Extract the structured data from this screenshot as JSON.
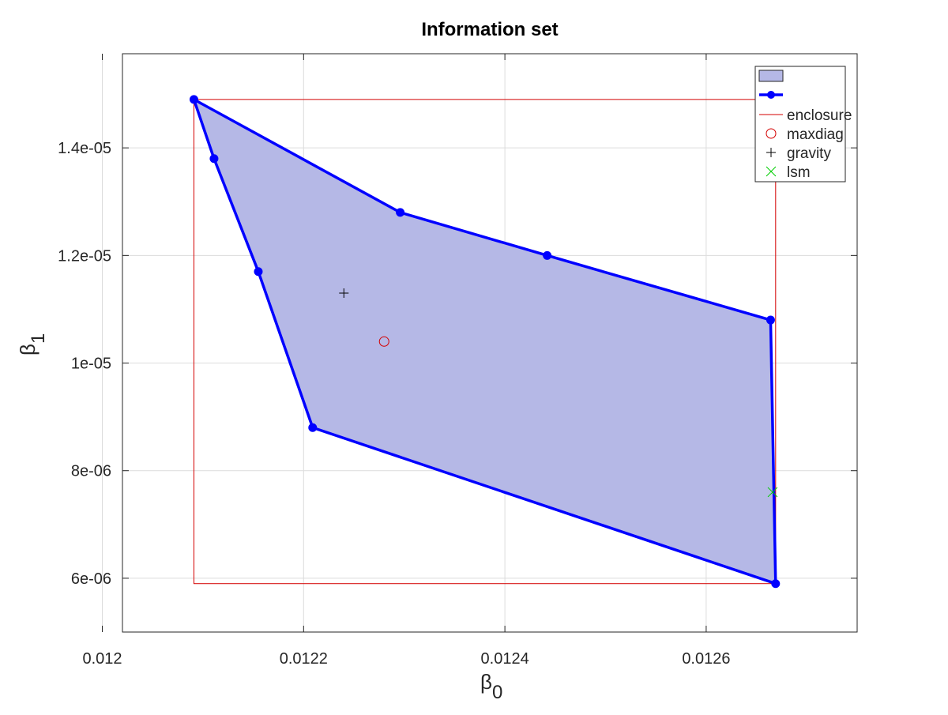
{
  "chart_data": {
    "type": "scatter",
    "title": "Information set",
    "xlabel": {
      "symbol": "β",
      "subscript": "0"
    },
    "ylabel": {
      "symbol": "β",
      "subscript": "1"
    },
    "xlim": [
      0.01202,
      0.01275
    ],
    "ylim": [
      5e-06,
      1.575e-05
    ],
    "xticks": [
      0.012,
      0.0122,
      0.0124,
      0.0126
    ],
    "xtick_labels": [
      "0.012",
      "0.0122",
      "0.0124",
      "0.0126"
    ],
    "yticks": [
      6e-06,
      8e-06,
      1e-05,
      1.2e-05,
      1.4e-05
    ],
    "ytick_labels": [
      "6e-06",
      "8e-06",
      "1e-05",
      "1.2e-05",
      "1.4e-05"
    ],
    "grid": true,
    "legend_position": "top-right",
    "colors": {
      "fill": "#b5b8e6",
      "boundary": "#0000ff",
      "enclosure": "#d40000",
      "maxdiag": "#d40000",
      "gravity": "#000000",
      "lsm": "#00cc00",
      "grid": "#dcdcdc",
      "axes": "#262626"
    },
    "series": [
      {
        "kind": "filled-polygon",
        "label": "",
        "points": [
          [
            0.012091,
            1.49e-05
          ],
          [
            0.012296,
            1.28e-05
          ],
          [
            0.012442,
            1.2e-05
          ],
          [
            0.012664,
            1.08e-05
          ],
          [
            0.012669,
            5.9e-06
          ],
          [
            0.012209,
            8.8e-06
          ],
          [
            0.012155,
            1.17e-05
          ],
          [
            0.012111,
            1.38e-05
          ]
        ]
      },
      {
        "kind": "boundary-line-with-markers",
        "label": "",
        "points": [
          [
            0.012091,
            1.49e-05
          ],
          [
            0.012296,
            1.28e-05
          ],
          [
            0.012442,
            1.2e-05
          ],
          [
            0.012664,
            1.08e-05
          ],
          [
            0.012669,
            5.9e-06
          ],
          [
            0.012209,
            8.8e-06
          ],
          [
            0.012155,
            1.17e-05
          ],
          [
            0.012111,
            1.38e-05
          ],
          [
            0.012091,
            1.49e-05
          ]
        ]
      },
      {
        "kind": "rectangle",
        "label": "enclosure",
        "xmin": 0.012091,
        "xmax": 0.012669,
        "ymin": 5.9e-06,
        "ymax": 1.49e-05
      },
      {
        "kind": "marker",
        "marker": "circle",
        "label": "maxdiag",
        "x": 0.01228,
        "y": 1.04e-05
      },
      {
        "kind": "marker",
        "marker": "plus",
        "label": "gravity",
        "x": 0.01224,
        "y": 1.13e-05
      },
      {
        "kind": "marker",
        "marker": "x",
        "label": "lsm",
        "x": 0.012666,
        "y": 7.6e-06
      }
    ]
  }
}
